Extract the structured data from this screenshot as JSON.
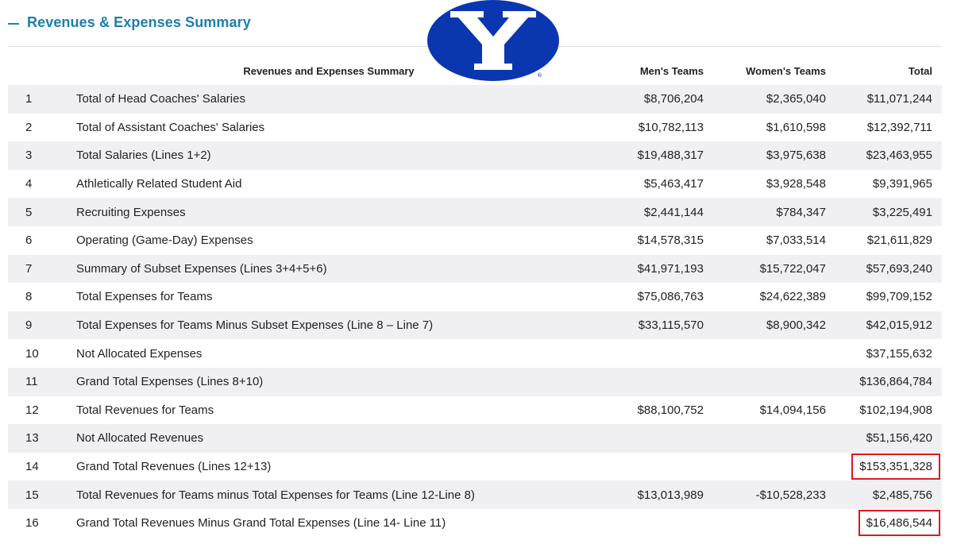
{
  "section": {
    "title": "Revenues & Expenses Summary"
  },
  "logo": {
    "name": "byu-y-logo",
    "colors": {
      "oval": "#0a36b0",
      "letter": "#ffffff"
    }
  },
  "table": {
    "headers": {
      "line": "",
      "description": "Revenues and Expenses Summary",
      "men": "Men's Teams",
      "women": "Women's Teams",
      "total": "Total"
    },
    "rows": [
      {
        "num": "1",
        "desc": "Total of Head Coaches' Salaries",
        "men": "$8,706,204",
        "women": "$2,365,040",
        "total": "$11,071,244"
      },
      {
        "num": "2",
        "desc": "Total of Assistant Coaches' Salaries",
        "men": "$10,782,113",
        "women": "$1,610,598",
        "total": "$12,392,711"
      },
      {
        "num": "3",
        "desc": "Total Salaries (Lines 1+2)",
        "men": "$19,488,317",
        "women": "$3,975,638",
        "total": "$23,463,955"
      },
      {
        "num": "4",
        "desc": "Athletically Related Student Aid",
        "men": "$5,463,417",
        "women": "$3,928,548",
        "total": "$9,391,965"
      },
      {
        "num": "5",
        "desc": "Recruiting Expenses",
        "men": "$2,441,144",
        "women": "$784,347",
        "total": "$3,225,491"
      },
      {
        "num": "6",
        "desc": "Operating (Game-Day) Expenses",
        "men": "$14,578,315",
        "women": "$7,033,514",
        "total": "$21,611,829"
      },
      {
        "num": "7",
        "desc": "Summary of Subset Expenses (Lines 3+4+5+6)",
        "men": "$41,971,193",
        "women": "$15,722,047",
        "total": "$57,693,240"
      },
      {
        "num": "8",
        "desc": "Total Expenses for Teams",
        "men": "$75,086,763",
        "women": "$24,622,389",
        "total": "$99,709,152"
      },
      {
        "num": "9",
        "desc": "Total Expenses for Teams Minus Subset Expenses (Line 8 – Line 7)",
        "men": "$33,115,570",
        "women": "$8,900,342",
        "total": "$42,015,912"
      },
      {
        "num": "10",
        "desc": "Not Allocated Expenses",
        "men": "",
        "women": "",
        "total": "$37,155,632"
      },
      {
        "num": "11",
        "desc": "Grand Total Expenses (Lines 8+10)",
        "men": "",
        "women": "",
        "total": "$136,864,784"
      },
      {
        "num": "12",
        "desc": "Total Revenues for Teams",
        "men": "$88,100,752",
        "women": "$14,094,156",
        "total": "$102,194,908"
      },
      {
        "num": "13",
        "desc": "Not Allocated Revenues",
        "men": "",
        "women": "",
        "total": "$51,156,420"
      },
      {
        "num": "14",
        "desc": "Grand Total Revenues (Lines 12+13)",
        "men": "",
        "women": "",
        "total": "$153,351,328",
        "highlight": true
      },
      {
        "num": "15",
        "desc": "Total Revenues for Teams minus Total Expenses for Teams (Line 12-Line 8)",
        "men": "$13,013,989",
        "women": "-$10,528,233",
        "total": "$2,485,756"
      },
      {
        "num": "16",
        "desc": "Grand Total Revenues Minus Grand Total Expenses (Line 14- Line 11)",
        "men": "",
        "women": "",
        "total": "$16,486,544",
        "highlight": true
      }
    ]
  },
  "colors": {
    "accent": "#1a7fb0",
    "row_stripe": "#f0f0f2",
    "highlight_border": "#e01818"
  }
}
